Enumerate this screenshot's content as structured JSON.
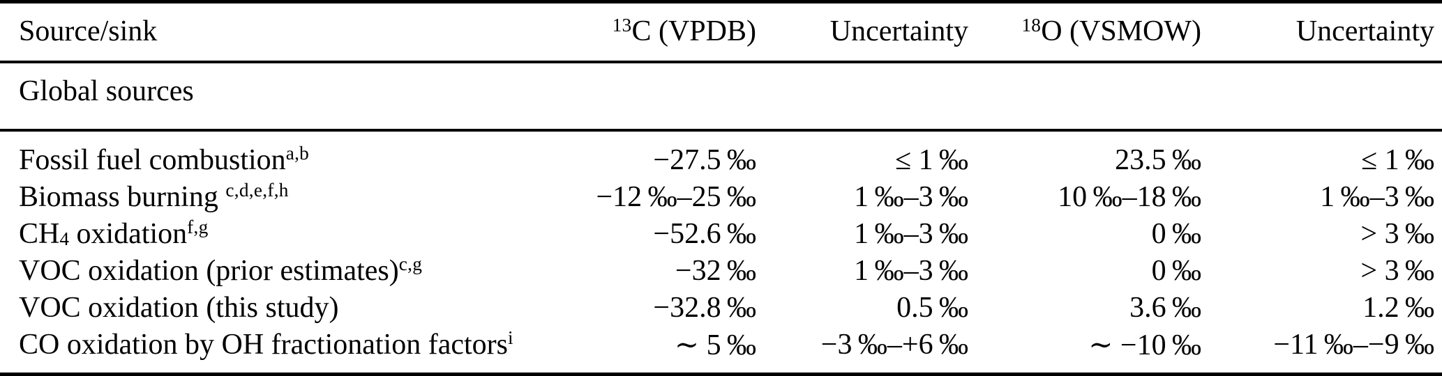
{
  "page": {
    "background": "#ffffff",
    "text_color": "#000000",
    "rule_color": "#000000"
  },
  "table": {
    "header": {
      "source_sink": "Source/sink",
      "c13": [
        {
          "sup": "13"
        },
        {
          "t": "C (VPDB)"
        }
      ],
      "c13_uncertainty": "Uncertainty",
      "o18": [
        {
          "sup": "18"
        },
        {
          "t": "O (VSMOW)"
        }
      ],
      "o18_uncertainty": "Uncertainty"
    },
    "section": {
      "label": "Global sources"
    },
    "rows": [
      {
        "label": [
          {
            "t": "Fossil fuel combustion"
          },
          {
            "sup": "a,b"
          }
        ],
        "c13": "−27.5 ‰",
        "c13_unc": "≤ 1 ‰",
        "o18": "23.5 ‰",
        "o18_unc": "≤ 1 ‰"
      },
      {
        "label": [
          {
            "t": "Biomass burning "
          },
          {
            "sup": "c,d,e,f,h"
          }
        ],
        "c13": "−12 ‰–25 ‰",
        "c13_unc": "1 ‰–3 ‰",
        "o18": "10 ‰–18 ‰",
        "o18_unc": "1 ‰–3 ‰"
      },
      {
        "label": [
          {
            "t": "CH"
          },
          {
            "sub": "4"
          },
          {
            "t": " oxidation"
          },
          {
            "sup": "f,g"
          }
        ],
        "c13": "−52.6 ‰",
        "c13_unc": "1 ‰–3 ‰",
        "o18": "0 ‰",
        "o18_unc": "> 3 ‰"
      },
      {
        "label": [
          {
            "t": "VOC oxidation (prior estimates)"
          },
          {
            "sup": "c,g"
          }
        ],
        "c13": "−32 ‰",
        "c13_unc": "1 ‰–3 ‰",
        "o18": "0 ‰",
        "o18_unc": "> 3 ‰"
      },
      {
        "label": [
          {
            "t": "VOC oxidation (this study)"
          }
        ],
        "c13": "−32.8 ‰",
        "c13_unc": "0.5 ‰",
        "o18": "3.6 ‰",
        "o18_unc": "1.2 ‰"
      },
      {
        "label": [
          {
            "t": "CO oxidation by OH fractionation factors"
          },
          {
            "sup": "i"
          }
        ],
        "c13": "∼ 5 ‰",
        "c13_unc": "−3 ‰–+6 ‰",
        "o18": "∼ −10 ‰",
        "o18_unc": "−11 ‰–−9 ‰"
      }
    ]
  }
}
